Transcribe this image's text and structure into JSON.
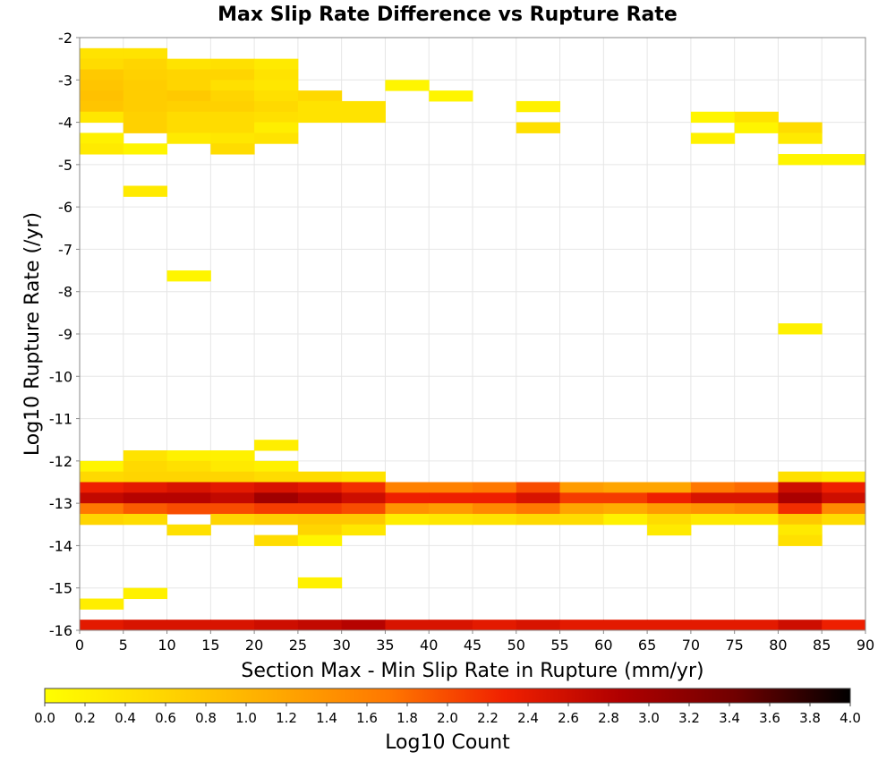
{
  "chart_data": {
    "type": "heatmap",
    "title": "Max Slip Rate Difference vs Rupture Rate",
    "xlabel": "Section Max - Min Slip Rate in Rupture (mm/yr)",
    "ylabel": "Log10 Rupture Rate (/yr)",
    "xlim": [
      0,
      90
    ],
    "ylim": [
      -16,
      -2
    ],
    "x_ticks": [
      0,
      5,
      10,
      15,
      20,
      25,
      30,
      35,
      40,
      45,
      50,
      55,
      60,
      65,
      70,
      75,
      80,
      85,
      90
    ],
    "y_ticks": [
      -2,
      -3,
      -4,
      -5,
      -6,
      -7,
      -8,
      -9,
      -10,
      -11,
      -12,
      -13,
      -14,
      -15,
      -16
    ],
    "x_bin_width": 5,
    "y_bin_width": 0.25,
    "grid": true,
    "colorbar": {
      "label": "Log10 Count",
      "range": [
        0,
        4
      ],
      "ticks": [
        0.0,
        0.2,
        0.4,
        0.6,
        0.8,
        1.0,
        1.2,
        1.4,
        1.6,
        1.8,
        2.0,
        2.2,
        2.4,
        2.6,
        2.8,
        3.0,
        3.2,
        3.4,
        3.6,
        3.8,
        4.0
      ],
      "tick_labels": [
        "0.0",
        "0.2",
        "0.4",
        "0.6",
        "0.8",
        "1.0",
        "1.2",
        "1.4",
        "1.6",
        "1.8",
        "2.0",
        "2.2",
        "2.4",
        "2.6",
        "2.8",
        "3.0",
        "3.2",
        "3.4",
        "3.6",
        "3.8",
        "4.0"
      ],
      "colors": [
        "#ffff00",
        "#ffd700",
        "#ffaa00",
        "#ff7700",
        "#f02000",
        "#b00000",
        "#700000",
        "#000000"
      ]
    },
    "cells": [
      [
        0,
        -2.25,
        0.4
      ],
      [
        5,
        -2.25,
        0.4
      ],
      [
        0,
        -2.5,
        0.5
      ],
      [
        5,
        -2.5,
        0.6
      ],
      [
        10,
        -2.5,
        0.4
      ],
      [
        15,
        -2.5,
        0.45
      ],
      [
        20,
        -2.5,
        0.3
      ],
      [
        0,
        -2.75,
        0.75
      ],
      [
        5,
        -2.75,
        0.65
      ],
      [
        10,
        -2.75,
        0.6
      ],
      [
        15,
        -2.75,
        0.6
      ],
      [
        20,
        -2.75,
        0.4
      ],
      [
        0,
        -3.0,
        0.8
      ],
      [
        5,
        -3.0,
        0.7
      ],
      [
        10,
        -3.0,
        0.6
      ],
      [
        15,
        -3.0,
        0.45
      ],
      [
        20,
        -3.0,
        0.35
      ],
      [
        35,
        -3.0,
        0.15
      ],
      [
        0,
        -3.25,
        0.85
      ],
      [
        5,
        -3.25,
        0.7
      ],
      [
        10,
        -3.25,
        0.75
      ],
      [
        15,
        -3.25,
        0.6
      ],
      [
        20,
        -3.25,
        0.45
      ],
      [
        25,
        -3.25,
        0.55
      ],
      [
        40,
        -3.25,
        0.15
      ],
      [
        0,
        -3.5,
        0.8
      ],
      [
        5,
        -3.5,
        0.7
      ],
      [
        10,
        -3.5,
        0.65
      ],
      [
        15,
        -3.5,
        0.65
      ],
      [
        20,
        -3.5,
        0.55
      ],
      [
        25,
        -3.5,
        0.4
      ],
      [
        30,
        -3.5,
        0.4
      ],
      [
        50,
        -3.5,
        0.2
      ],
      [
        0,
        -3.75,
        0.35
      ],
      [
        5,
        -3.75,
        0.65
      ],
      [
        10,
        -3.75,
        0.5
      ],
      [
        15,
        -3.75,
        0.5
      ],
      [
        20,
        -3.75,
        0.45
      ],
      [
        25,
        -3.75,
        0.4
      ],
      [
        30,
        -3.75,
        0.4
      ],
      [
        70,
        -3.75,
        0.15
      ],
      [
        75,
        -3.75,
        0.4
      ],
      [
        5,
        -4.0,
        0.65
      ],
      [
        10,
        -4.0,
        0.5
      ],
      [
        15,
        -4.0,
        0.5
      ],
      [
        20,
        -4.0,
        0.25
      ],
      [
        50,
        -4.0,
        0.45
      ],
      [
        75,
        -4.0,
        0.15
      ],
      [
        80,
        -4.0,
        0.5
      ],
      [
        0,
        -4.25,
        0.2
      ],
      [
        10,
        -4.25,
        0.3
      ],
      [
        15,
        -4.25,
        0.35
      ],
      [
        20,
        -4.25,
        0.4
      ],
      [
        70,
        -4.25,
        0.2
      ],
      [
        80,
        -4.25,
        0.3
      ],
      [
        0,
        -4.5,
        0.3
      ],
      [
        5,
        -4.5,
        0.15
      ],
      [
        15,
        -4.5,
        0.5
      ],
      [
        80,
        -4.75,
        0.15
      ],
      [
        85,
        -4.75,
        0.15
      ],
      [
        5,
        -5.5,
        0.3
      ],
      [
        10,
        -7.5,
        0.15
      ],
      [
        80,
        -8.75,
        0.2
      ],
      [
        20,
        -11.5,
        0.25
      ],
      [
        5,
        -11.75,
        0.4
      ],
      [
        10,
        -11.75,
        0.2
      ],
      [
        15,
        -11.75,
        0.2
      ],
      [
        0,
        -12.0,
        0.15
      ],
      [
        5,
        -12.0,
        0.55
      ],
      [
        10,
        -12.0,
        0.45
      ],
      [
        15,
        -12.0,
        0.3
      ],
      [
        20,
        -12.0,
        0.2
      ],
      [
        0,
        -12.25,
        0.55
      ],
      [
        5,
        -12.25,
        0.6
      ],
      [
        10,
        -12.25,
        0.6
      ],
      [
        15,
        -12.25,
        0.6
      ],
      [
        20,
        -12.25,
        0.5
      ],
      [
        25,
        -12.25,
        0.5
      ],
      [
        30,
        -12.25,
        0.4
      ],
      [
        80,
        -12.25,
        0.45
      ],
      [
        85,
        -12.25,
        0.3
      ],
      [
        0,
        -12.5,
        2.3
      ],
      [
        5,
        -12.5,
        2.4
      ],
      [
        10,
        -12.5,
        2.5
      ],
      [
        15,
        -12.5,
        2.4
      ],
      [
        20,
        -12.5,
        2.5
      ],
      [
        25,
        -12.5,
        2.4
      ],
      [
        30,
        -12.5,
        2.2
      ],
      [
        35,
        -12.5,
        1.6
      ],
      [
        40,
        -12.5,
        1.6
      ],
      [
        45,
        -12.5,
        1.7
      ],
      [
        50,
        -12.5,
        2.0
      ],
      [
        55,
        -12.5,
        1.3
      ],
      [
        60,
        -12.5,
        1.2
      ],
      [
        65,
        -12.5,
        1.2
      ],
      [
        70,
        -12.5,
        1.7
      ],
      [
        75,
        -12.5,
        1.8
      ],
      [
        80,
        -12.5,
        2.6
      ],
      [
        85,
        -12.5,
        2.3
      ],
      [
        0,
        -12.75,
        2.7
      ],
      [
        5,
        -12.75,
        2.8
      ],
      [
        10,
        -12.75,
        2.8
      ],
      [
        15,
        -12.75,
        2.7
      ],
      [
        20,
        -12.75,
        3.0
      ],
      [
        25,
        -12.75,
        2.8
      ],
      [
        30,
        -12.75,
        2.6
      ],
      [
        35,
        -12.75,
        2.3
      ],
      [
        40,
        -12.75,
        2.3
      ],
      [
        45,
        -12.75,
        2.3
      ],
      [
        50,
        -12.75,
        2.5
      ],
      [
        55,
        -12.75,
        2.1
      ],
      [
        60,
        -12.75,
        2.1
      ],
      [
        65,
        -12.75,
        2.3
      ],
      [
        70,
        -12.75,
        2.5
      ],
      [
        75,
        -12.75,
        2.5
      ],
      [
        80,
        -12.75,
        2.9
      ],
      [
        85,
        -12.75,
        2.6
      ],
      [
        0,
        -13.0,
        1.7
      ],
      [
        5,
        -13.0,
        1.9
      ],
      [
        10,
        -13.0,
        2.0
      ],
      [
        15,
        -13.0,
        2.0
      ],
      [
        20,
        -13.0,
        2.1
      ],
      [
        25,
        -13.0,
        2.1
      ],
      [
        30,
        -13.0,
        2.0
      ],
      [
        35,
        -13.0,
        1.4
      ],
      [
        40,
        -13.0,
        1.3
      ],
      [
        45,
        -13.0,
        1.5
      ],
      [
        50,
        -13.0,
        1.7
      ],
      [
        55,
        -13.0,
        1.2
      ],
      [
        60,
        -13.0,
        1.1
      ],
      [
        65,
        -13.0,
        1.3
      ],
      [
        70,
        -13.0,
        1.4
      ],
      [
        75,
        -13.0,
        1.5
      ],
      [
        80,
        -13.0,
        2.2
      ],
      [
        85,
        -13.0,
        1.5
      ],
      [
        0,
        -13.25,
        0.6
      ],
      [
        5,
        -13.25,
        0.5
      ],
      [
        15,
        -13.25,
        0.6
      ],
      [
        20,
        -13.25,
        0.7
      ],
      [
        25,
        -13.25,
        0.75
      ],
      [
        30,
        -13.25,
        0.75
      ],
      [
        35,
        -13.25,
        0.25
      ],
      [
        40,
        -13.25,
        0.35
      ],
      [
        45,
        -13.25,
        0.4
      ],
      [
        50,
        -13.25,
        0.55
      ],
      [
        55,
        -13.25,
        0.5
      ],
      [
        60,
        -13.25,
        0.2
      ],
      [
        65,
        -13.25,
        0.5
      ],
      [
        70,
        -13.25,
        0.3
      ],
      [
        75,
        -13.25,
        0.3
      ],
      [
        80,
        -13.25,
        0.75
      ],
      [
        85,
        -13.25,
        0.5
      ],
      [
        10,
        -13.5,
        0.45
      ],
      [
        25,
        -13.5,
        0.6
      ],
      [
        30,
        -13.5,
        0.35
      ],
      [
        65,
        -13.5,
        0.3
      ],
      [
        80,
        -13.5,
        0.3
      ],
      [
        20,
        -13.75,
        0.5
      ],
      [
        25,
        -13.75,
        0.15
      ],
      [
        80,
        -13.75,
        0.45
      ],
      [
        25,
        -14.75,
        0.2
      ],
      [
        5,
        -15.0,
        0.2
      ],
      [
        0,
        -15.25,
        0.25
      ],
      [
        0,
        -15.75,
        2.4
      ],
      [
        5,
        -15.75,
        2.5
      ],
      [
        10,
        -15.75,
        2.5
      ],
      [
        15,
        -15.75,
        2.5
      ],
      [
        20,
        -15.75,
        2.6
      ],
      [
        25,
        -15.75,
        2.7
      ],
      [
        30,
        -15.75,
        2.8
      ],
      [
        35,
        -15.75,
        2.5
      ],
      [
        40,
        -15.75,
        2.5
      ],
      [
        45,
        -15.75,
        2.4
      ],
      [
        50,
        -15.75,
        2.5
      ],
      [
        55,
        -15.75,
        2.4
      ],
      [
        60,
        -15.75,
        2.4
      ],
      [
        65,
        -15.75,
        2.4
      ],
      [
        70,
        -15.75,
        2.4
      ],
      [
        75,
        -15.75,
        2.4
      ],
      [
        80,
        -15.75,
        2.6
      ],
      [
        85,
        -15.75,
        2.3
      ]
    ]
  }
}
